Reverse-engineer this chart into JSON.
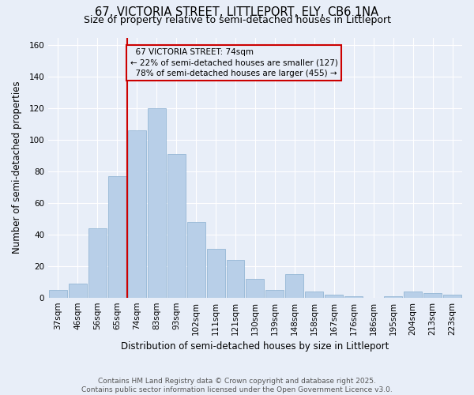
{
  "title_line1": "67, VICTORIA STREET, LITTLEPORT, ELY, CB6 1NA",
  "title_line2": "Size of property relative to semi-detached houses in Littleport",
  "xlabel": "Distribution of semi-detached houses by size in Littleport",
  "ylabel": "Number of semi-detached properties",
  "footer": "Contains HM Land Registry data © Crown copyright and database right 2025.\nContains public sector information licensed under the Open Government Licence v3.0.",
  "categories": [
    "37sqm",
    "46sqm",
    "56sqm",
    "65sqm",
    "74sqm",
    "83sqm",
    "93sqm",
    "102sqm",
    "111sqm",
    "121sqm",
    "130sqm",
    "139sqm",
    "148sqm",
    "158sqm",
    "167sqm",
    "176sqm",
    "186sqm",
    "195sqm",
    "204sqm",
    "213sqm",
    "223sqm"
  ],
  "values": [
    5,
    9,
    44,
    77,
    106,
    120,
    91,
    48,
    31,
    24,
    12,
    5,
    15,
    4,
    2,
    1,
    0,
    1,
    4,
    3,
    2
  ],
  "property_label": "67 VICTORIA STREET: 74sqm",
  "pct_smaller": 22,
  "count_smaller": 127,
  "pct_larger": 78,
  "count_larger": 455,
  "vline_index": 4,
  "bar_color": "#b8cfe8",
  "bar_edge_color": "#8aafd0",
  "vline_color": "#cc0000",
  "annotation_box_edgecolor": "#cc0000",
  "background_color": "#e8eef8",
  "ylim": [
    0,
    165
  ],
  "yticks": [
    0,
    20,
    40,
    60,
    80,
    100,
    120,
    140,
    160
  ],
  "grid_color": "#ffffff",
  "title_fontsize": 10.5,
  "subtitle_fontsize": 9,
  "axis_label_fontsize": 8.5,
  "tick_fontsize": 7.5,
  "annotation_fontsize": 7.5,
  "footer_fontsize": 6.5
}
